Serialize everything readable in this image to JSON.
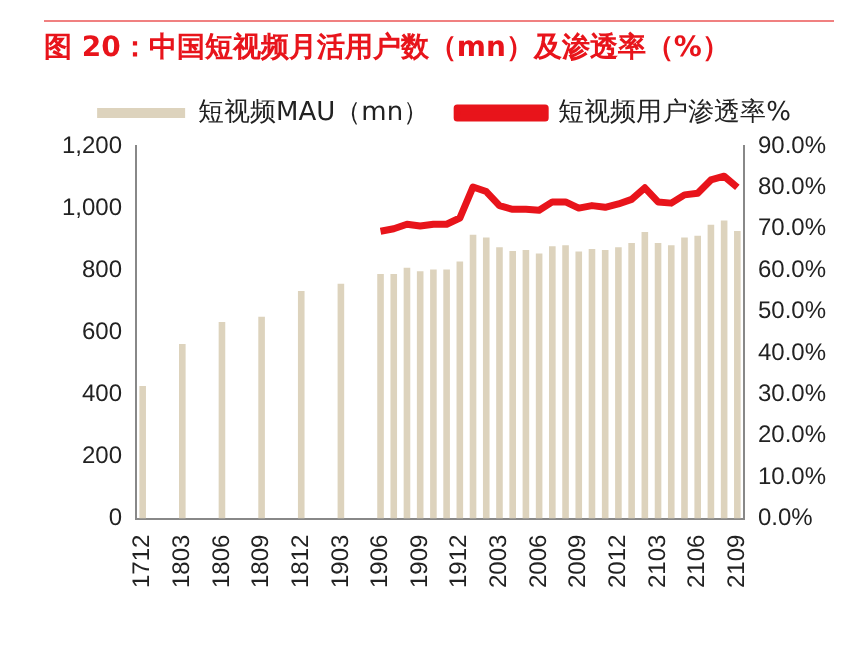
{
  "chart_data": {
    "type": "bar",
    "title": "图 20：中国短视频月活用户数（mn）及渗透率（%）",
    "categories": [
      "1712",
      null,
      null,
      "1803",
      null,
      null,
      "1806",
      null,
      null,
      "1809",
      null,
      null,
      "1812",
      null,
      null,
      "1903",
      null,
      null,
      "1906",
      null,
      null,
      "1909",
      null,
      null,
      "1912",
      null,
      null,
      "2003",
      null,
      null,
      "2006",
      null,
      null,
      "2009",
      null,
      null,
      "2012",
      null,
      null,
      "2103",
      null,
      null,
      "2106",
      null,
      null,
      "2109"
    ],
    "series": [
      {
        "name": "短视频MAU（mn）",
        "color": "#ddd3bd",
        "values": [
          427,
          null,
          null,
          562,
          null,
          null,
          633,
          null,
          null,
          650,
          null,
          null,
          733,
          null,
          null,
          756,
          null,
          null,
          788,
          788,
          808,
          797,
          802,
          802,
          828,
          914,
          905,
          874,
          862,
          865,
          854,
          877,
          880,
          860,
          868,
          865,
          874,
          888,
          923,
          888,
          880,
          905,
          911,
          946,
          960,
          926
        ]
      },
      {
        "name": "短视频用户渗透率%",
        "type": "line",
        "axis": "y2",
        "color": "#e8141b",
        "values": [
          null,
          null,
          null,
          null,
          null,
          null,
          null,
          null,
          null,
          null,
          null,
          null,
          null,
          null,
          null,
          null,
          null,
          null,
          69.4,
          70,
          71.1,
          70.7,
          71.1,
          71.1,
          72.6,
          80.1,
          79,
          75.6,
          74.7,
          74.7,
          74.5,
          76.5,
          76.5,
          75,
          75.6,
          75.2,
          76,
          77.1,
          79.9,
          76.5,
          76.2,
          78.2,
          78.6,
          81.8,
          82.7,
          80
        ]
      }
    ],
    "ylim": [
      0,
      1200
    ],
    "yticks": [
      0,
      200,
      400,
      600,
      800,
      {
        "value": 1000,
        "label": "1,000"
      },
      {
        "value": 1200,
        "label": "1,200"
      }
    ],
    "y2lim": [
      0,
      90
    ],
    "y2ticks": [
      {
        "value": 0,
        "label": "0.0%"
      },
      {
        "value": 10,
        "label": "10.0%"
      },
      {
        "value": 20,
        "label": "20.0%"
      },
      {
        "value": 30,
        "label": "30.0%"
      },
      {
        "value": 40,
        "label": "40.0%"
      },
      {
        "value": 50,
        "label": "50.0%"
      },
      {
        "value": 60,
        "label": "60.0%"
      },
      {
        "value": 70,
        "label": "70.0%"
      },
      {
        "value": 80,
        "label": "80.0%"
      },
      {
        "value": 90,
        "label": "90.0%"
      }
    ],
    "grid": false,
    "legend": "top",
    "marker": "none"
  }
}
